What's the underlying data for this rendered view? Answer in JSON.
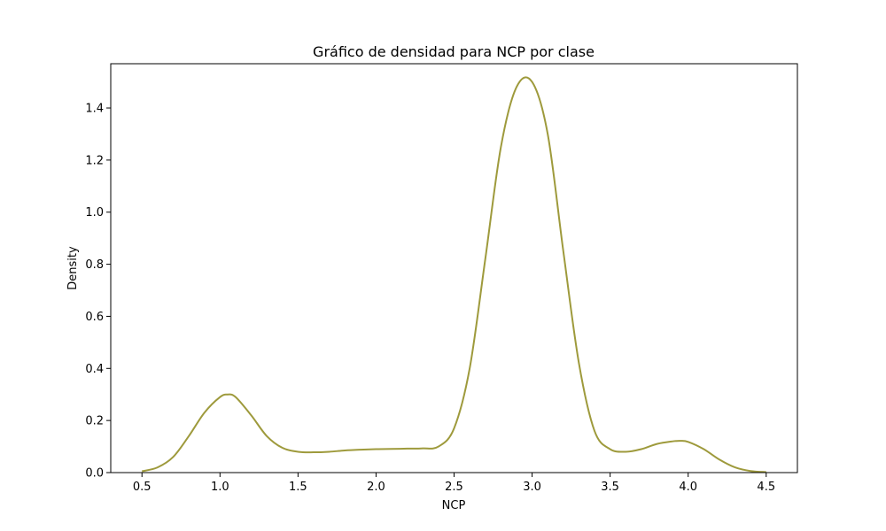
{
  "chart_data": {
    "type": "line",
    "title": "Gráfico de densidad para NCP por clase",
    "xlabel": "NCP",
    "ylabel": "Density",
    "xlim": [
      0.3,
      4.7
    ],
    "ylim": [
      0,
      1.57
    ],
    "x_ticks": [
      0.5,
      1.0,
      1.5,
      2.0,
      2.5,
      3.0,
      3.5,
      4.0,
      4.5
    ],
    "x_tick_labels": [
      "0.5",
      "1.0",
      "1.5",
      "2.0",
      "2.5",
      "3.0",
      "3.5",
      "4.0",
      "4.5"
    ],
    "y_ticks": [
      0.0,
      0.2,
      0.4,
      0.6,
      0.8,
      1.0,
      1.2,
      1.4
    ],
    "y_tick_labels": [
      "0.0",
      "0.2",
      "0.4",
      "0.6",
      "0.8",
      "1.0",
      "1.2",
      "1.4"
    ],
    "grid": false,
    "series": [
      {
        "color": "#9e9a3c",
        "x": [
          0.5,
          0.6,
          0.7,
          0.8,
          0.9,
          1.0,
          1.05,
          1.1,
          1.2,
          1.3,
          1.4,
          1.5,
          1.6,
          1.7,
          1.8,
          1.9,
          2.0,
          2.1,
          2.2,
          2.3,
          2.4,
          2.5,
          2.6,
          2.7,
          2.8,
          2.9,
          3.0,
          3.1,
          3.2,
          3.3,
          3.4,
          3.5,
          3.6,
          3.7,
          3.8,
          3.9,
          3.95,
          4.0,
          4.1,
          4.2,
          4.3,
          4.4,
          4.5
        ],
        "y": [
          0.005,
          0.02,
          0.06,
          0.14,
          0.23,
          0.29,
          0.3,
          0.29,
          0.22,
          0.14,
          0.095,
          0.08,
          0.078,
          0.08,
          0.085,
          0.088,
          0.09,
          0.091,
          0.092,
          0.093,
          0.1,
          0.17,
          0.4,
          0.82,
          1.25,
          1.48,
          1.5,
          1.3,
          0.85,
          0.42,
          0.16,
          0.09,
          0.08,
          0.09,
          0.11,
          0.12,
          0.122,
          0.118,
          0.09,
          0.05,
          0.02,
          0.006,
          0.002
        ]
      }
    ]
  }
}
